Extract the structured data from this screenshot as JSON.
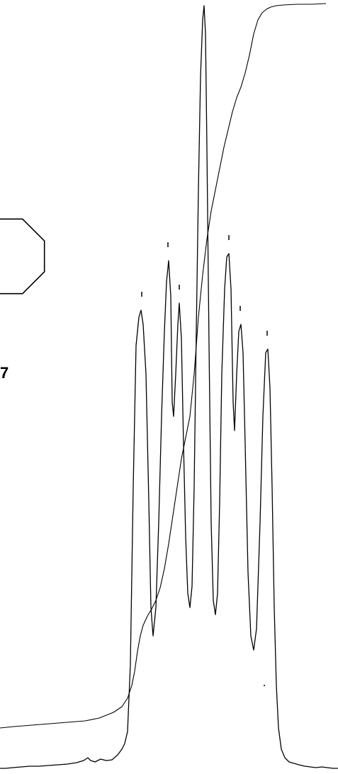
{
  "structure_label": "7",
  "colors": {
    "trace": "#000000",
    "background": "#ffffff"
  },
  "chart_data": {
    "type": "line",
    "title": "",
    "xlabel": "",
    "ylabel": "",
    "grid": false,
    "series": [
      {
        "role": "spectrum",
        "points": [
          [
            0,
            3
          ],
          [
            8,
            3
          ],
          [
            18,
            4
          ],
          [
            30,
            5
          ],
          [
            42,
            6
          ],
          [
            55,
            6
          ],
          [
            68,
            7
          ],
          [
            82,
            8
          ],
          [
            95,
            9
          ],
          [
            108,
            11
          ],
          [
            118,
            14
          ],
          [
            124,
            18
          ],
          [
            128,
            14
          ],
          [
            134,
            12
          ],
          [
            142,
            16
          ],
          [
            150,
            14
          ],
          [
            158,
            15
          ],
          [
            166,
            22
          ],
          [
            172,
            30
          ],
          [
            176,
            38
          ],
          [
            180,
            55
          ],
          [
            184,
            150
          ],
          [
            188,
            400
          ],
          [
            192,
            600
          ],
          [
            196,
            640
          ],
          [
            199,
            650
          ],
          [
            202,
            630
          ],
          [
            206,
            560
          ],
          [
            210,
            380
          ],
          [
            213,
            230
          ],
          [
            216,
            190
          ],
          [
            220,
            230
          ],
          [
            224,
            350
          ],
          [
            228,
            500
          ],
          [
            232,
            620
          ],
          [
            235,
            690
          ],
          [
            238,
            720
          ],
          [
            241,
            670
          ],
          [
            243,
            520
          ],
          [
            245,
            500
          ],
          [
            248,
            560
          ],
          [
            251,
            630
          ],
          [
            253,
            660
          ],
          [
            256,
            610
          ],
          [
            259,
            460
          ],
          [
            262,
            330
          ],
          [
            265,
            250
          ],
          [
            268,
            230
          ],
          [
            271,
            260
          ],
          [
            274,
            400
          ],
          [
            277,
            620
          ],
          [
            280,
            820
          ],
          [
            283,
            980
          ],
          [
            286,
            1060
          ],
          [
            288,
            1080
          ],
          [
            290,
            1040
          ],
          [
            292,
            880
          ],
          [
            295,
            600
          ],
          [
            298,
            350
          ],
          [
            301,
            240
          ],
          [
            304,
            220
          ],
          [
            307,
            250
          ],
          [
            310,
            380
          ],
          [
            313,
            560
          ],
          [
            317,
            680
          ],
          [
            320,
            725
          ],
          [
            323,
            730
          ],
          [
            326,
            680
          ],
          [
            329,
            520
          ],
          [
            331,
            480
          ],
          [
            334,
            560
          ],
          [
            337,
            620
          ],
          [
            340,
            630
          ],
          [
            343,
            590
          ],
          [
            346,
            460
          ],
          [
            350,
            280
          ],
          [
            354,
            190
          ],
          [
            358,
            170
          ],
          [
            362,
            200
          ],
          [
            367,
            350
          ],
          [
            371,
            500
          ],
          [
            375,
            590
          ],
          [
            378,
            595
          ],
          [
            381,
            540
          ],
          [
            384,
            400
          ],
          [
            387,
            230
          ],
          [
            390,
            120
          ],
          [
            393,
            60
          ],
          [
            397,
            30
          ],
          [
            402,
            18
          ],
          [
            408,
            12
          ],
          [
            415,
            10
          ],
          [
            422,
            8
          ],
          [
            430,
            6
          ],
          [
            438,
            5
          ],
          [
            446,
            4
          ],
          [
            454,
            5
          ],
          [
            462,
            4
          ],
          [
            470,
            3
          ],
          [
            477,
            3
          ]
        ]
      },
      {
        "role": "integral",
        "points": [
          [
            0,
            60
          ],
          [
            20,
            62
          ],
          [
            45,
            64
          ],
          [
            70,
            66
          ],
          [
            95,
            68
          ],
          [
            120,
            70
          ],
          [
            140,
            74
          ],
          [
            160,
            82
          ],
          [
            172,
            90
          ],
          [
            180,
            102
          ],
          [
            186,
            120
          ],
          [
            190,
            140
          ],
          [
            194,
            168
          ],
          [
            198,
            190
          ],
          [
            202,
            205
          ],
          [
            208,
            218
          ],
          [
            214,
            228
          ],
          [
            220,
            240
          ],
          [
            226,
            258
          ],
          [
            232,
            285
          ],
          [
            238,
            320
          ],
          [
            244,
            360
          ],
          [
            250,
            400
          ],
          [
            256,
            440
          ],
          [
            262,
            470
          ],
          [
            268,
            500
          ],
          [
            274,
            560
          ],
          [
            280,
            640
          ],
          [
            286,
            700
          ],
          [
            292,
            750
          ],
          [
            298,
            790
          ],
          [
            304,
            820
          ],
          [
            310,
            850
          ],
          [
            316,
            880
          ],
          [
            322,
            905
          ],
          [
            328,
            930
          ],
          [
            334,
            950
          ],
          [
            340,
            965
          ],
          [
            346,
            985
          ],
          [
            352,
            1010
          ],
          [
            358,
            1040
          ],
          [
            364,
            1060
          ],
          [
            370,
            1070
          ],
          [
            376,
            1075
          ],
          [
            382,
            1078
          ],
          [
            390,
            1080
          ],
          [
            400,
            1081
          ],
          [
            420,
            1082
          ],
          [
            440,
            1082
          ],
          [
            460,
            1083
          ]
        ]
      }
    ],
    "peak_markers": [
      {
        "x": 200,
        "y": 650
      },
      {
        "x": 237,
        "y": 720
      },
      {
        "x": 253,
        "y": 660
      },
      {
        "x": 323,
        "y": 730
      },
      {
        "x": 339,
        "y": 630
      },
      {
        "x": 377,
        "y": 595
      }
    ]
  }
}
